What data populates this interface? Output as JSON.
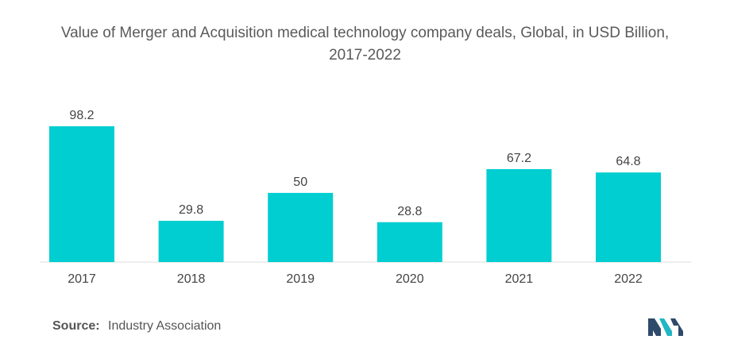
{
  "chart_data": {
    "type": "bar",
    "title": "Value of Merger and Acquisition medical technology company deals, Global, in USD Billion,",
    "subtitle": "2017-2022",
    "categories": [
      "2017",
      "2018",
      "2019",
      "2020",
      "2021",
      "2022"
    ],
    "values": [
      98.2,
      29.8,
      50,
      28.8,
      67.2,
      64.8
    ],
    "data_labels": [
      "98.2",
      "29.8",
      "50",
      "28.8",
      "67.2",
      "64.8"
    ],
    "xlabel": "",
    "ylabel": "",
    "ylim": [
      0,
      98.2
    ],
    "grid": false,
    "legend": "none",
    "bar_color": "#00CED1"
  },
  "footer": {
    "source_label": "Source:",
    "source_text": "Industry Association"
  },
  "colors": {
    "title": "#5a5a5a",
    "axis_text": "#444444",
    "baseline": "#dddddd",
    "logo_dark": "#2e4a6b",
    "logo_teal": "#22b6c4"
  }
}
